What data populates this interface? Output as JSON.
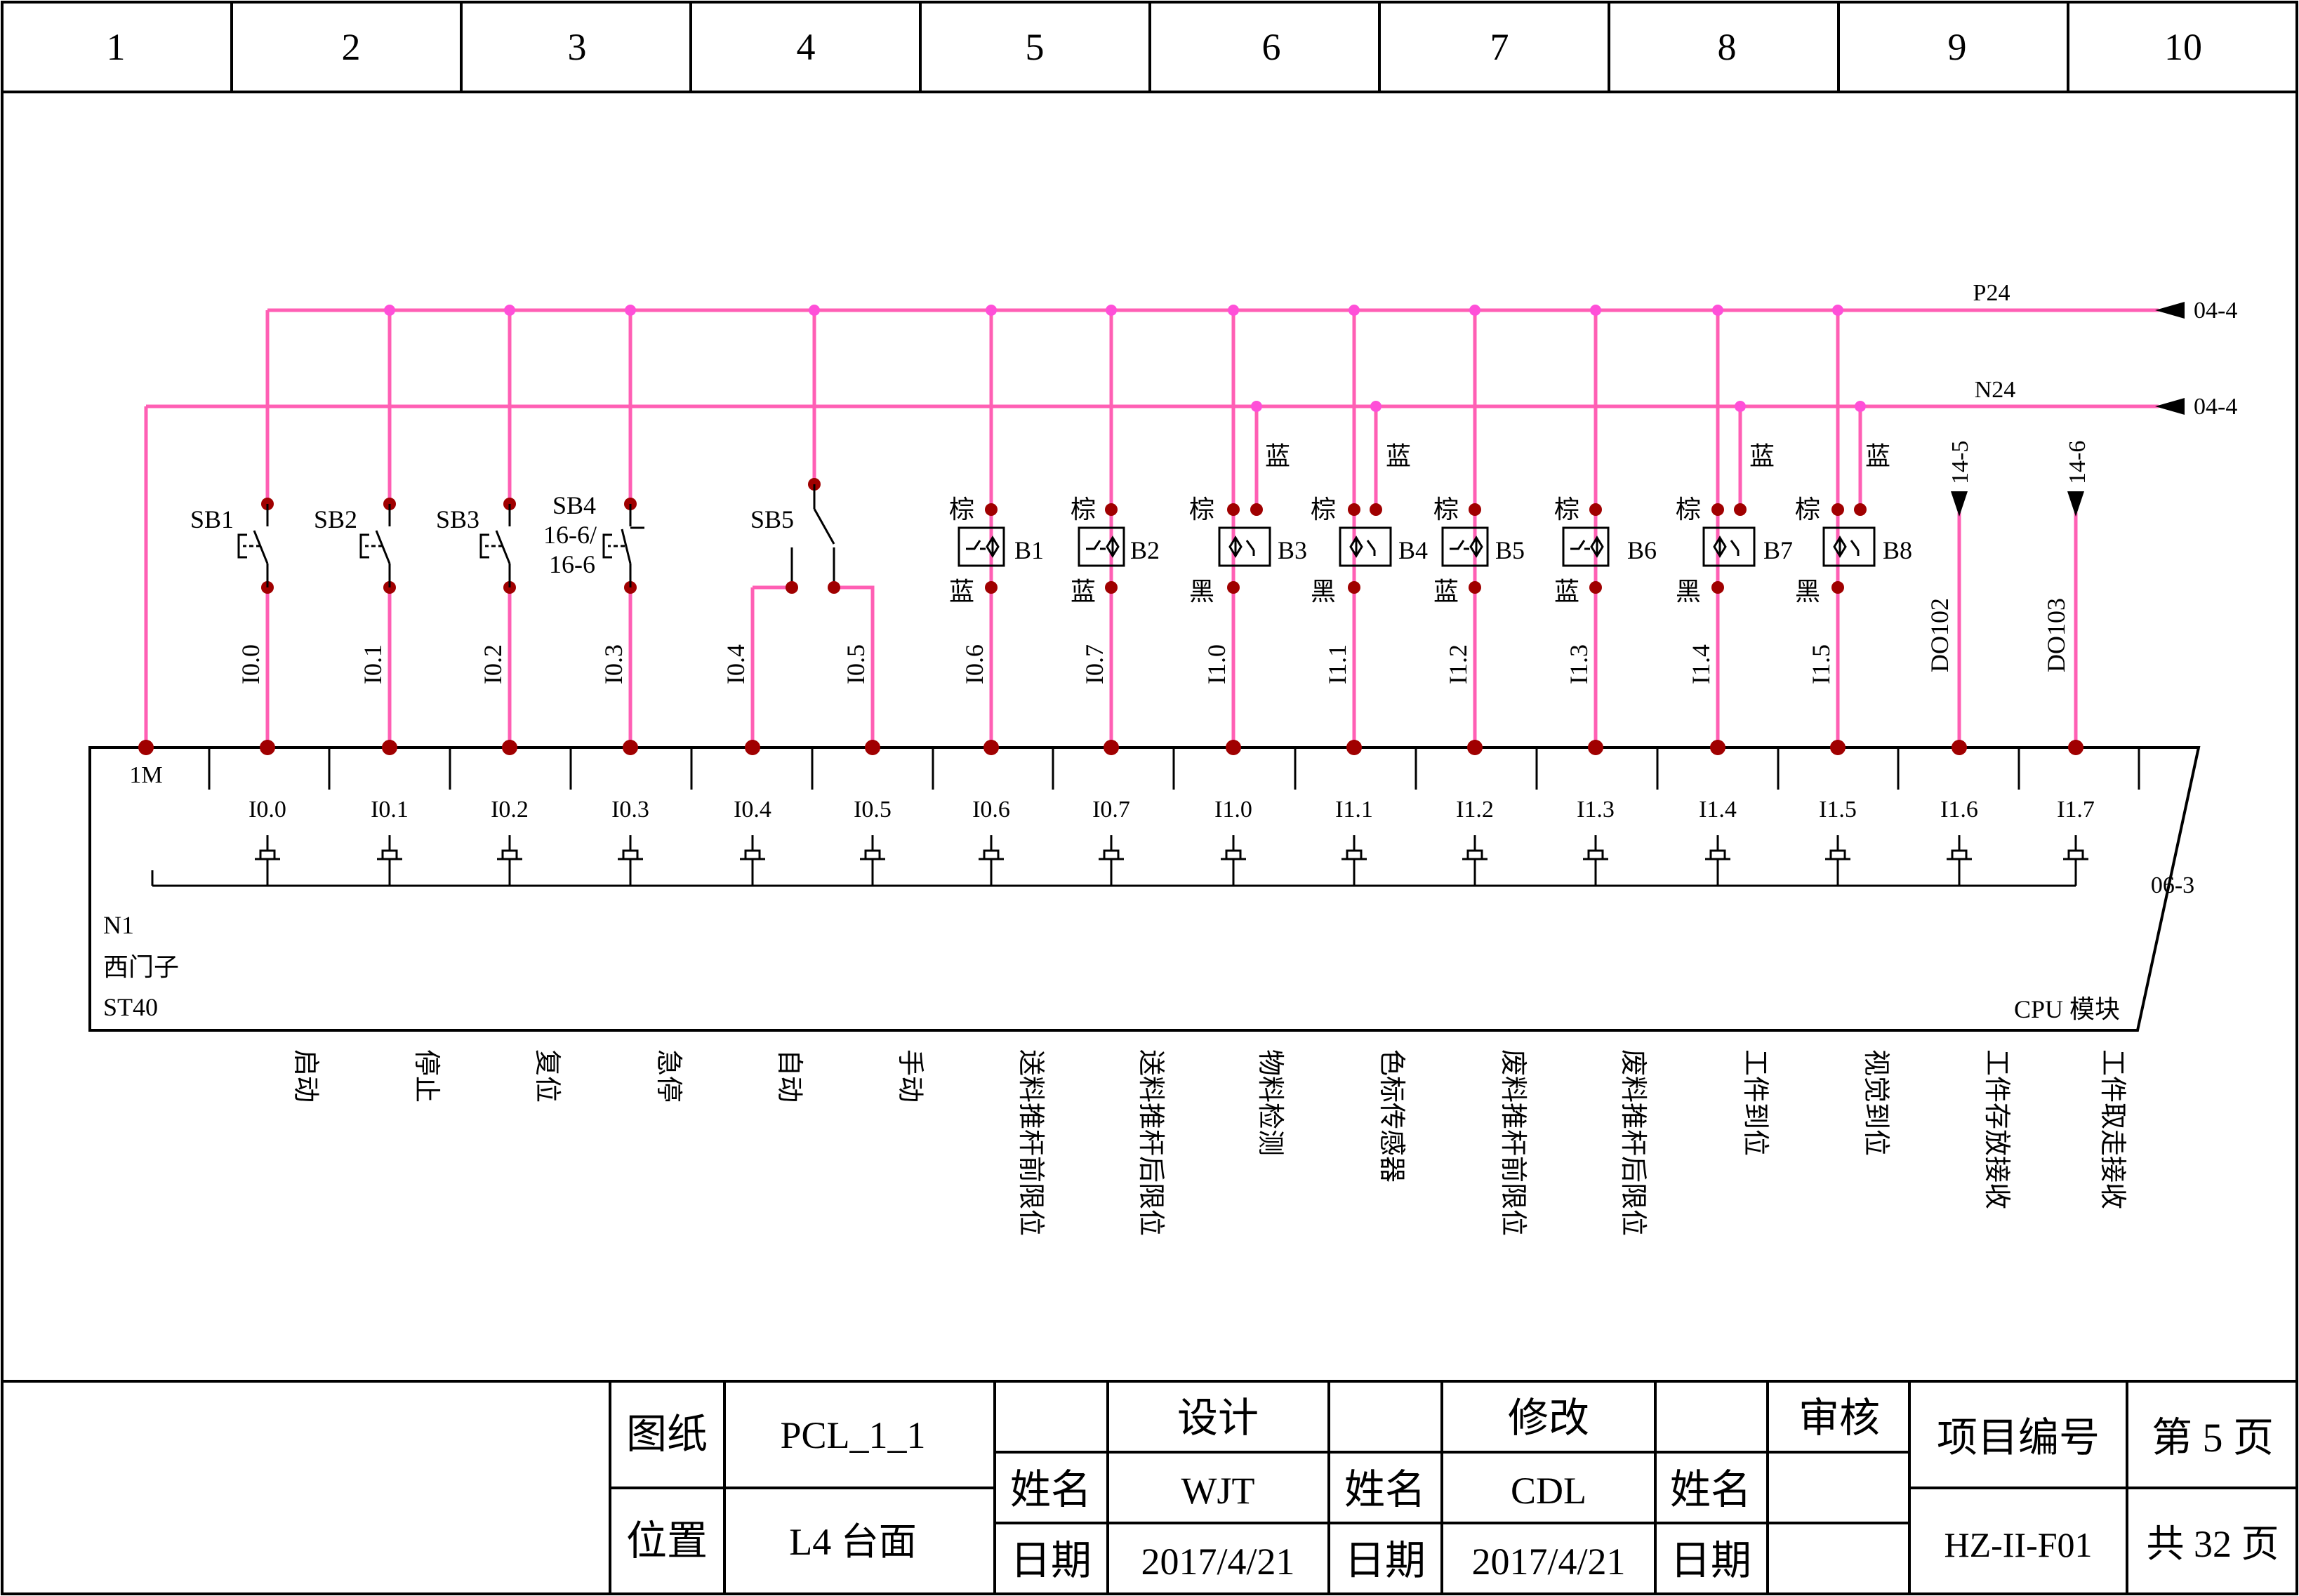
{
  "border": {
    "columns": [
      "1",
      "2",
      "3",
      "4",
      "5",
      "6",
      "7",
      "8",
      "9",
      "10"
    ]
  },
  "buses": {
    "p24_label": "P24",
    "n24_label": "N24",
    "p24_ref": "04-4",
    "n24_ref": "04-4"
  },
  "plc": {
    "common_label": "1M",
    "ref_right": "06-3",
    "id": "N1",
    "vendor": "西门子",
    "model": "ST40",
    "module": "CPU 模块",
    "terminals": [
      "I0.0",
      "I0.1",
      "I0.2",
      "I0.3",
      "I0.4",
      "I0.5",
      "I0.6",
      "I0.7",
      "I1.0",
      "I1.1",
      "I1.2",
      "I1.3",
      "I1.4",
      "I1.5",
      "I1.6",
      "I1.7"
    ]
  },
  "wire_labels": [
    "I0.0",
    "I0.1",
    "I0.2",
    "I0.3",
    "I0.4",
    "I0.5",
    "I0.6",
    "I0.7",
    "I1.0",
    "I1.1",
    "I1.2",
    "I1.3",
    "I1.4",
    "I1.5",
    "DO102",
    "DO103"
  ],
  "functions": [
    "启动",
    "停止",
    "复位",
    "急停",
    "自动",
    "手动",
    "送料推杆前限位",
    "送料推杆后限位",
    "物料检测",
    "色标传感器",
    "废料推杆前限位",
    "废料推杆后限位",
    "工件到位",
    "视觉到位",
    "工件存放接收",
    "工件取走接收"
  ],
  "switches": {
    "sb1": "SB1",
    "sb2": "SB2",
    "sb3": "SB3",
    "sb4": "SB4",
    "sb4_ref1": "16-6/",
    "sb4_ref2": "16-6",
    "sb5": "SB5"
  },
  "sensors": [
    {
      "name": "B1",
      "top": "棕",
      "bottom": "蓝",
      "extra": ""
    },
    {
      "name": "B2",
      "top": "棕",
      "bottom": "蓝",
      "extra": ""
    },
    {
      "name": "B3",
      "top": "棕",
      "bottom": "黑",
      "extra": "蓝"
    },
    {
      "name": "B4",
      "top": "棕",
      "bottom": "黑",
      "extra": "蓝"
    },
    {
      "name": "B5",
      "top": "棕",
      "bottom": "蓝",
      "extra": ""
    },
    {
      "name": "B6",
      "top": "棕",
      "bottom": "蓝",
      "extra": ""
    },
    {
      "name": "B7",
      "top": "棕",
      "bottom": "黑",
      "extra": "蓝"
    },
    {
      "name": "B8",
      "top": "棕",
      "bottom": "黑",
      "extra": "蓝"
    }
  ],
  "cross_refs": [
    "14-5",
    "14-6"
  ],
  "title_block": {
    "drawing_label": "图纸",
    "drawing_value": "PCL_1_1",
    "location_label": "位置",
    "location_value": "L4 台面",
    "design_header": "设计",
    "modify_header": "修改",
    "review_header": "审核",
    "name_label": "姓名",
    "date_label": "日期",
    "design_name": "WJT",
    "design_date": "2017/4/21",
    "modify_name": "CDL",
    "modify_date": "2017/4/21",
    "project_label": "项目编号",
    "project_value": "HZ-II-F01",
    "page_current": "第 5 页",
    "page_total": "共 32 页"
  }
}
